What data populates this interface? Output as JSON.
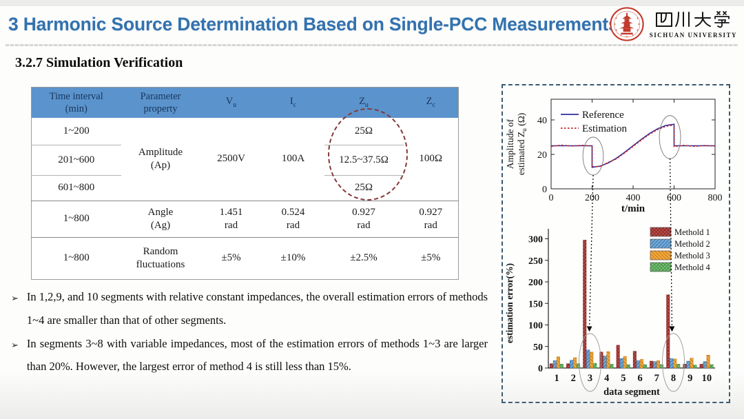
{
  "header": {
    "title": "3 Harmonic Source Determination Based on Single-PCC Measurements",
    "logo": {
      "chinese": "四川大學",
      "english": "SICHUAN UNIVERSITY"
    }
  },
  "section_title": "3.2.7 Simulation Verification",
  "table": {
    "columns": [
      {
        "l1": "Time interval",
        "l2": "(min)"
      },
      {
        "l1": "Parameter",
        "l2": "property"
      },
      {
        "base": "V",
        "sub": "u"
      },
      {
        "base": "I",
        "sub": "c"
      },
      {
        "base": "Z",
        "sub": "u"
      },
      {
        "base": "Z",
        "sub": "c"
      }
    ],
    "amplitude": {
      "intervals": [
        "1~200",
        "201~600",
        "601~800"
      ],
      "prop_l1": "Amplitude",
      "prop_l2": "(Ap)",
      "vu": "2500V",
      "ic": "100A",
      "zu": [
        "25Ω",
        "12.5~37.5Ω",
        "25Ω"
      ],
      "zc": "100Ω"
    },
    "angle": {
      "interval": "1~800",
      "prop_l1": "Angle",
      "prop_l2": "(Ag)",
      "vu": "1.451",
      "vu_unit": "rad",
      "ic": "0.524",
      "ic_unit": "rad",
      "zu": "0.927",
      "zu_unit": "rad",
      "zc": "0.927",
      "zc_unit": "rad"
    },
    "random": {
      "interval": "1~800",
      "prop_l1": "Random",
      "prop_l2": "fluctuations",
      "vu": "±5%",
      "ic": "±10%",
      "zu": "±2.5%",
      "zc": "±5%"
    }
  },
  "bullets": {
    "marker": "➢",
    "items": [
      "In 1,2,9, and 10 segments with relative constant impedances, the overall estimation errors of methods 1~4 are smaller than that of other segments.",
      "In segments 3~8 with variable impedances, most of the estimation errors of methods 1~3 are larger than 20%. However, the largest error of method 4 is still less than 15%."
    ]
  },
  "chart_data": [
    {
      "type": "line",
      "ylabel": "Amplitude of estimated Zu (Ω)",
      "ylabel_lines": [
        {
          "pre": "Amplitude of",
          "sub": "",
          "post": ""
        },
        {
          "pre": "estimated Z",
          "sub": "u",
          "post": " (Ω)"
        }
      ],
      "xlabel": "t/min",
      "xlim": [
        0,
        800
      ],
      "ylim": [
        0,
        52
      ],
      "xticks": [
        0,
        200,
        400,
        600,
        800
      ],
      "yticks": [
        0,
        20,
        40
      ],
      "legend_position": "top-left",
      "grid": false,
      "series": [
        {
          "name": "Reference",
          "style": "solid",
          "color": "#2b2b9e",
          "x": [
            0,
            50,
            100,
            150,
            200,
            200,
            240,
            280,
            320,
            360,
            400,
            440,
            480,
            520,
            560,
            600,
            600,
            650,
            700,
            750,
            800
          ],
          "y": [
            25,
            25,
            25,
            25,
            25,
            12.5,
            13.2,
            15.1,
            17.9,
            21.3,
            25,
            28.7,
            32.1,
            34.9,
            36.8,
            37.5,
            25,
            25,
            25,
            25,
            25
          ]
        },
        {
          "name": "Estimation",
          "style": "dotted",
          "color": "#c42727",
          "x": [
            0,
            50,
            100,
            150,
            200,
            200,
            240,
            280,
            320,
            360,
            400,
            440,
            480,
            520,
            560,
            600,
            600,
            650,
            700,
            750,
            800
          ],
          "y": [
            24.6,
            25.4,
            24.8,
            25.3,
            24.9,
            12.9,
            13.0,
            15.5,
            17.5,
            21.0,
            24.6,
            28.3,
            31.7,
            34.4,
            36.3,
            37.0,
            24.5,
            25.3,
            24.6,
            25.2,
            24.8
          ]
        }
      ],
      "annotations": [
        {
          "type": "ellipse",
          "t": 205,
          "v": 19,
          "tspan": 100,
          "vspan": 22
        },
        {
          "type": "ellipse",
          "t": 580,
          "v": 30,
          "tspan": 104,
          "vspan": 25
        }
      ]
    },
    {
      "type": "bar",
      "ylabel": "estimation error(%)",
      "xlabel": "data segment",
      "categories": [
        "1",
        "2",
        "3",
        "4",
        "5",
        "6",
        "7",
        "8",
        "9",
        "10"
      ],
      "yticks": [
        0,
        50,
        100,
        150,
        200,
        250,
        300
      ],
      "ylim": [
        0,
        320
      ],
      "legend_position": "top-right",
      "grid": false,
      "series": [
        {
          "name": "Methold 1",
          "color": "#c0504d",
          "hatch": "cross",
          "hatch_color": "#7d2522",
          "values": [
            10,
            10,
            297,
            37,
            53,
            39,
            16,
            170,
            9,
            9
          ]
        },
        {
          "name": "Methold 2",
          "color": "#74a9d8",
          "hatch": "fwd",
          "hatch_color": "#2e6da4",
          "values": [
            17,
            18,
            42,
            28,
            22,
            17,
            15,
            22,
            16,
            15
          ]
        },
        {
          "name": "Methold 3",
          "color": "#f4a73a",
          "hatch": "back",
          "hatch_color": "#b87514",
          "values": [
            26,
            24,
            37,
            38,
            27,
            20,
            17,
            21,
            23,
            30
          ]
        },
        {
          "name": "Methold 4",
          "color": "#7cc47c",
          "hatch": "cross",
          "hatch_color": "#3d8b3d",
          "values": [
            9,
            10,
            11,
            9,
            8,
            8,
            8,
            9,
            7,
            8
          ]
        }
      ],
      "highlight_segments": [
        3,
        8
      ]
    }
  ],
  "panel": {
    "connectors": [
      {
        "from": "impedance step at t=200",
        "to": "data segment 3"
      },
      {
        "from": "impedance step at t=600",
        "to": "data segment 8"
      }
    ]
  }
}
